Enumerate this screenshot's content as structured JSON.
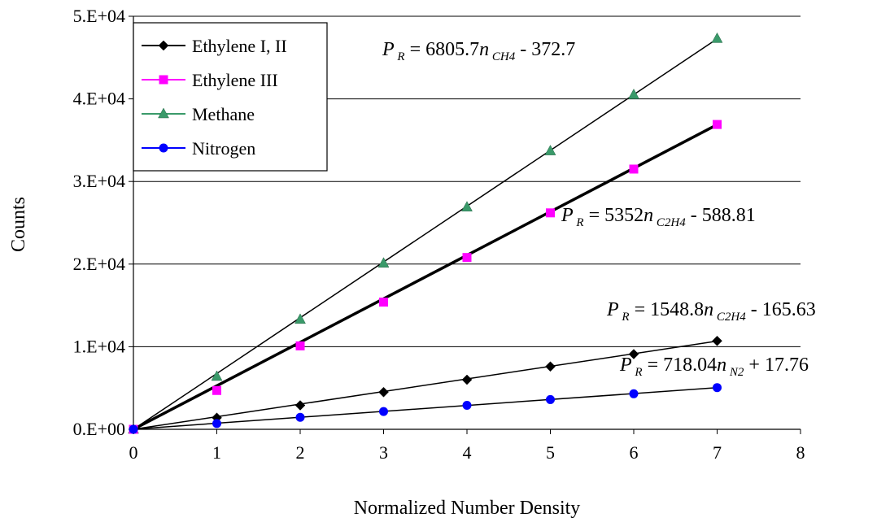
{
  "chart_data": {
    "type": "scatter",
    "title": "",
    "xlabel": "Normalized Number Density",
    "ylabel": "Counts",
    "xlim": [
      0,
      8
    ],
    "ylim": [
      0,
      50000
    ],
    "x_ticks": [
      "0",
      "1",
      "2",
      "3",
      "4",
      "5",
      "6",
      "7",
      "8"
    ],
    "y_ticks": [
      "0.E+00",
      "1.E+04",
      "2.E+04",
      "3.E+04",
      "4.E+04",
      "5.E+04"
    ],
    "grid": "horizontal",
    "legend_position": "top-left",
    "series": [
      {
        "name": "Ethylene I, II",
        "color": "#000000",
        "marker": "diamond",
        "x": [
          0,
          1,
          2,
          3,
          4,
          5,
          6,
          7
        ],
        "y": [
          0,
          1400,
          2900,
          4500,
          6000,
          7600,
          9100,
          10700
        ],
        "fit": {
          "slope": 1548.8,
          "intercept": -165.63
        }
      },
      {
        "name": "Ethylene III",
        "color": "#ff00ff",
        "marker": "square",
        "x": [
          0,
          1,
          2,
          3,
          4,
          5,
          6,
          7
        ],
        "y": [
          0,
          4700,
          10100,
          15400,
          20800,
          26200,
          31500,
          36900
        ],
        "fit": {
          "slope": 5352,
          "intercept": -588.81
        }
      },
      {
        "name": "Methane",
        "color": "#3a9a6a",
        "marker": "triangle",
        "x": [
          0,
          1,
          2,
          3,
          4,
          5,
          6,
          7
        ],
        "y": [
          0,
          6400,
          13300,
          20100,
          26900,
          33700,
          40500,
          47300
        ],
        "fit": {
          "slope": 6805.7,
          "intercept": -372.7
        }
      },
      {
        "name": "Nitrogen",
        "color": "#0000ff",
        "marker": "circle",
        "x": [
          0,
          1,
          2,
          3,
          4,
          5,
          6,
          7
        ],
        "y": [
          0,
          700,
          1450,
          2150,
          2900,
          3600,
          4300,
          5050
        ],
        "fit": {
          "slope": 718.04,
          "intercept": 17.76
        }
      }
    ],
    "annotations": [
      {
        "lhs": "P",
        "lhs_sub": "R",
        "mid": " = 6805.7",
        "var": "n",
        "var_sub": "CH4",
        "rhs": " - 372.7"
      },
      {
        "lhs": "P",
        "lhs_sub": "R",
        "mid": " = 5352",
        "var": "n",
        "var_sub": "C2H4",
        "rhs": " - 588.81"
      },
      {
        "lhs": "P",
        "lhs_sub": "R",
        "mid": " = 1548.8",
        "var": "n",
        "var_sub": "C2H4",
        "rhs": " - 165.63"
      },
      {
        "lhs": "P",
        "lhs_sub": "R",
        "mid": " = 718.04",
        "var": "n",
        "var_sub": "N2",
        "rhs": " + 17.76"
      }
    ]
  }
}
